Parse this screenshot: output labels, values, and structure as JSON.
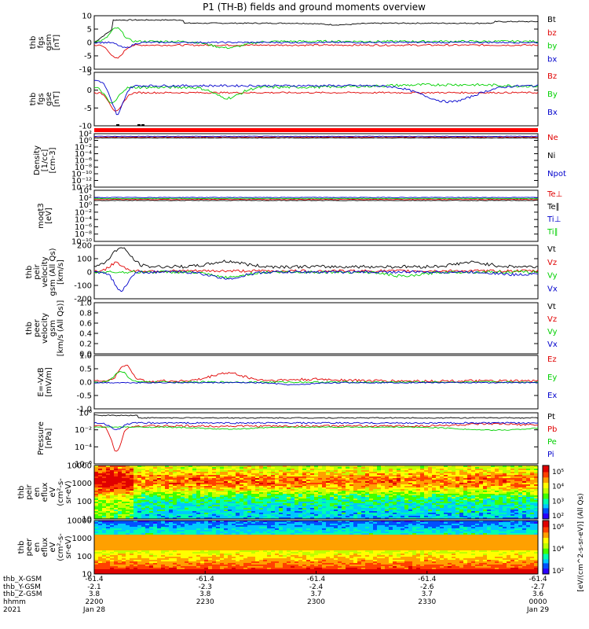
{
  "title": "P1  (TH-B) fields and ground moments overview",
  "colors": {
    "black": "#000000",
    "red": "#e00000",
    "green": "#00d000",
    "blue": "#0000cc",
    "navy": "#00008b",
    "flag": "#ff0000"
  },
  "chart_data": [
    {
      "type": "line",
      "panel": "fgs_gsm",
      "ylabel": [
        "thb",
        "fgs",
        "gsm",
        "[nT]"
      ],
      "ylim": [
        -10,
        10
      ],
      "yticks": [
        "10",
        "5",
        "0",
        "-5",
        "-10"
      ],
      "legend": [
        {
          "name": "Bt",
          "color": "#000000"
        },
        {
          "name": "bz",
          "color": "#e00000"
        },
        {
          "name": "by",
          "color": "#00d000"
        },
        {
          "name": "bx",
          "color": "#0000cc"
        }
      ]
    },
    {
      "type": "line",
      "panel": "fgs_gse",
      "ylabel": [
        "thb",
        "fgs",
        "gse",
        "[nT]"
      ],
      "ylim": [
        -12,
        5
      ],
      "yticks": [
        "5",
        "0",
        "-5",
        "-10"
      ],
      "legend": [
        {
          "name": "Bz",
          "color": "#e00000"
        },
        {
          "name": "By",
          "color": "#00d000"
        },
        {
          "name": "Bx",
          "color": "#0000cc"
        }
      ]
    },
    {
      "type": "line",
      "panel": "density",
      "ylabel": [
        "Density",
        "[1/cc]",
        "[cm-3]"
      ],
      "yscale": "log",
      "yticks": [
        "10²",
        "10⁰",
        "10⁻²",
        "10⁻⁴",
        "10⁻⁶",
        "10⁻⁸",
        "10⁻¹⁰",
        "10⁻¹²",
        "10⁻¹⁴"
      ],
      "legend": [
        {
          "name": "Ne",
          "color": "#e00000"
        },
        {
          "name": "Ni",
          "color": "#000000"
        },
        {
          "name": "Npot",
          "color": "#0000cc"
        }
      ]
    },
    {
      "type": "line",
      "panel": "temperature",
      "ylabel": [
        "moqt3",
        "[eV]"
      ],
      "yscale": "log",
      "yticks": [
        "10⁴",
        "10²",
        "10⁰",
        "10⁻²",
        "10⁻⁴",
        "10⁻⁶",
        "10⁻⁸",
        "10⁻¹⁰"
      ],
      "legend": [
        {
          "name": "Te⊥",
          "color": "#e00000"
        },
        {
          "name": "Te∥",
          "color": "#000000"
        },
        {
          "name": "Ti⊥",
          "color": "#0000cc"
        },
        {
          "name": "Ti∥",
          "color": "#00d000"
        }
      ]
    },
    {
      "type": "line",
      "panel": "peir_velocity",
      "ylabel": [
        "thb",
        "peir",
        "velocity",
        "gsm (All Qs)",
        "[km/s]"
      ],
      "ylim": [
        -200,
        200
      ],
      "yticks": [
        "200",
        "100",
        "0",
        "-100",
        "-200"
      ],
      "legend": [
        {
          "name": "Vt",
          "color": "#000000"
        },
        {
          "name": "Vz",
          "color": "#e00000"
        },
        {
          "name": "Vy",
          "color": "#00d000"
        },
        {
          "name": "Vx",
          "color": "#0000cc"
        }
      ]
    },
    {
      "type": "line",
      "panel": "peer_velocity",
      "ylabel": [
        "thb",
        "peer",
        "velocity",
        "gsm",
        "[km/s (All Qs)]"
      ],
      "ylim": [
        0,
        1
      ],
      "yticks": [
        "1.0",
        "0.8",
        "0.6",
        "0.4",
        "0.2",
        "0.0"
      ],
      "legend": [
        {
          "name": "Vt",
          "color": "#000000"
        },
        {
          "name": "Vz",
          "color": "#e00000"
        },
        {
          "name": "Vy",
          "color": "#00d000"
        },
        {
          "name": "Vx",
          "color": "#0000cc"
        }
      ]
    },
    {
      "type": "line",
      "panel": "efield",
      "ylabel": [
        "E=-VxB",
        "[mV/m]"
      ],
      "ylim": [
        -1,
        1
      ],
      "yticks": [
        "1.0",
        "0.5",
        "0.0",
        "-0.5",
        "-1.0"
      ],
      "legend": [
        {
          "name": "Ez",
          "color": "#e00000"
        },
        {
          "name": "Ey",
          "color": "#00d000"
        },
        {
          "name": "Ex",
          "color": "#0000cc"
        }
      ]
    },
    {
      "type": "line",
      "panel": "pressure",
      "ylabel": [
        "Pressure",
        "[nPa]"
      ],
      "yscale": "log",
      "yticks": [
        "10⁰",
        "10⁻²",
        "10⁻⁴",
        "10⁻⁶"
      ],
      "legend": [
        {
          "name": "Pt",
          "color": "#000000"
        },
        {
          "name": "Pb",
          "color": "#e00000"
        },
        {
          "name": "Pe",
          "color": "#00d000"
        },
        {
          "name": "Pi",
          "color": "#0000cc"
        }
      ]
    },
    {
      "type": "heatmap",
      "panel": "peir_eflux",
      "ylabel": [
        "thb",
        "peir",
        "en",
        "eflux",
        "eV",
        "(cm²-s-",
        "sr-eV)"
      ],
      "yscale": "log",
      "yticks": [
        "10000",
        "1000",
        "100",
        "10"
      ],
      "colorbar_ticks": [
        "10⁵",
        "10⁴",
        "10³",
        "10²"
      ]
    },
    {
      "type": "heatmap",
      "panel": "peer_eflux",
      "ylabel": [
        "thb",
        "peer",
        "en",
        "eflux",
        "eV",
        "(cm²-s-",
        "sr-eV)"
      ],
      "yscale": "log",
      "yticks": [
        "10000",
        "1000",
        "100",
        "10"
      ],
      "colorbar_ticks": [
        "10⁶",
        "10⁴",
        "10²"
      ]
    }
  ],
  "colorbar_label": "[eV/(cm^2-s-sr-eV)] (All Qs)",
  "xaxis": {
    "row_labels": [
      "thb_X-GSM",
      "thb_Y-GSM",
      "thb_Z-GSM",
      "hhmm",
      "2021"
    ],
    "ticks": [
      {
        "x": "-61.4",
        "y": "-2.1",
        "z": "3.8",
        "t": "2200",
        "d": "Jan 28"
      },
      {
        "x": "-61.4",
        "y": "-2.3",
        "z": "3.8",
        "t": "2230",
        "d": ""
      },
      {
        "x": "-61.4",
        "y": "-2.4",
        "z": "3.7",
        "t": "2300",
        "d": ""
      },
      {
        "x": "-61.4",
        "y": "-2.6",
        "z": "3.7",
        "t": "2330",
        "d": ""
      },
      {
        "x": "-61.4",
        "y": "-2.7",
        "z": "3.6",
        "t": "0000",
        "d": "Jan 29"
      }
    ]
  }
}
